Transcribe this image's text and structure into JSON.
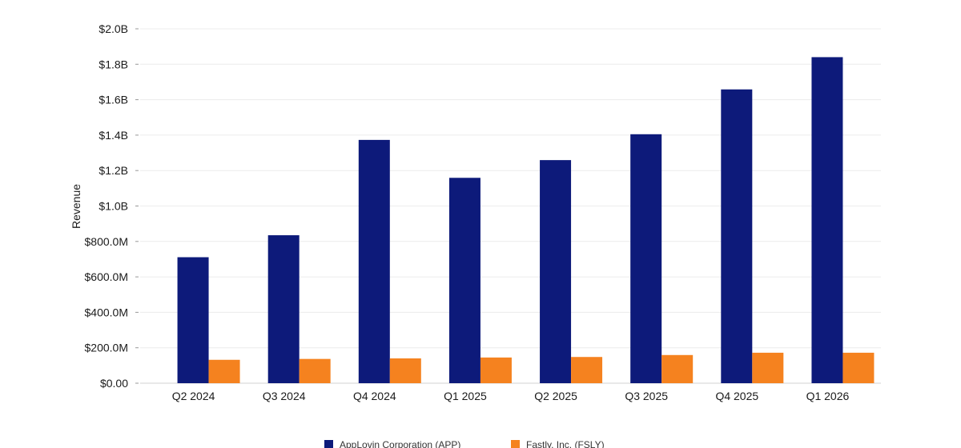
{
  "chart_data": {
    "type": "bar",
    "title": "",
    "xlabel": "",
    "ylabel": "Revenue",
    "categories": [
      "Q2 2024",
      "Q3 2024",
      "Q4 2024",
      "Q1 2025",
      "Q2 2025",
      "Q3 2025",
      "Q4 2025",
      "Q1 2026"
    ],
    "series": [
      {
        "name": "AppLovin Corporation (APP)",
        "color": "#0d1a7a",
        "values": [
          711,
          835,
          1373,
          1159,
          1259,
          1405,
          1658,
          1840
        ]
      },
      {
        "name": "Fastly, Inc. (FSLY)",
        "color": "#f5821f",
        "values": [
          132,
          137,
          140,
          145,
          148,
          159,
          172,
          172
        ]
      }
    ],
    "ylim": [
      0,
      2000
    ],
    "yticks": [
      0,
      200,
      400,
      600,
      800,
      1000,
      1200,
      1400,
      1600,
      1800,
      2000
    ],
    "ytick_labels": [
      "$0.00",
      "$200.0M",
      "$400.0M",
      "$600.0M",
      "$800.0M",
      "$1.0B",
      "$1.2B",
      "$1.4B",
      "$1.6B",
      "$1.8B",
      "$2.0B"
    ],
    "grid": true,
    "legend_position": "bottom-center"
  }
}
